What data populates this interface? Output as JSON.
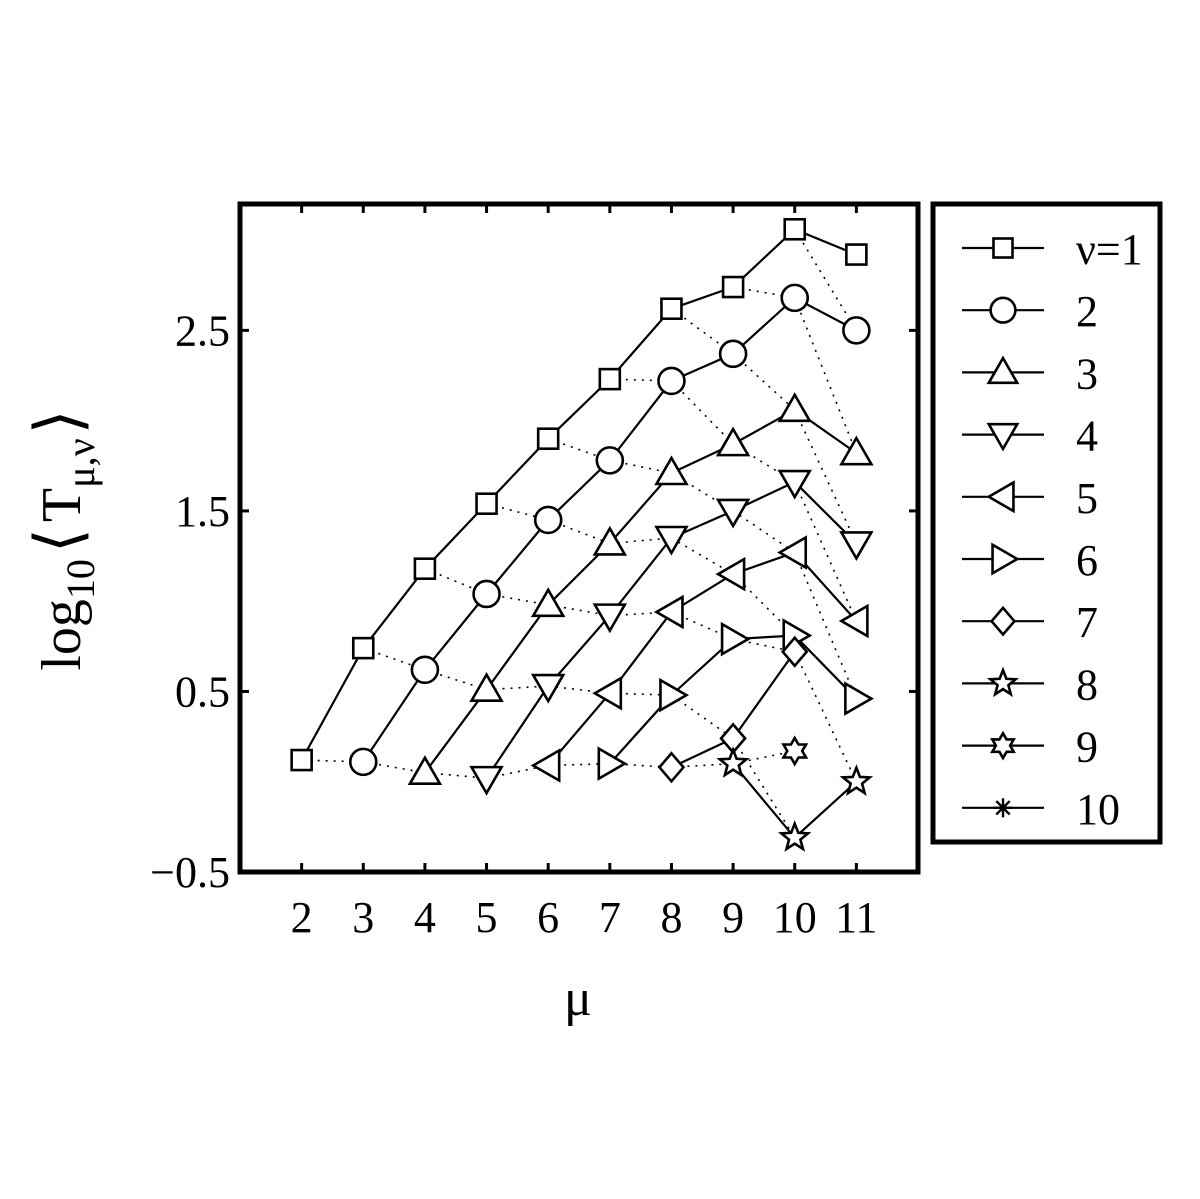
{
  "chart_data": {
    "type": "line",
    "title": "",
    "xlabel": "μ",
    "ylabel": {
      "base": "log",
      "sub": "10",
      "symbol": "T",
      "index": "μ,ν"
    },
    "xlim": [
      1,
      12
    ],
    "ylim": [
      -0.5,
      3.2
    ],
    "xticks": [
      "2",
      "3",
      "4",
      "5",
      "6",
      "7",
      "8",
      "9",
      "10",
      "11"
    ],
    "yticks": [
      "−0.5",
      "0.5",
      "1.5",
      "2.5"
    ],
    "ytick_values": [
      -0.5,
      0.5,
      1.5,
      2.5
    ],
    "grid": false,
    "legend_position": "outside-right",
    "series": [
      {
        "name": "ν=1",
        "marker": "square",
        "x": [
          2,
          3,
          4,
          5,
          6,
          7,
          8,
          9,
          10,
          11
        ],
        "y": [
          0.12,
          0.74,
          1.18,
          1.54,
          1.9,
          2.23,
          2.62,
          2.74,
          3.06,
          2.92
        ]
      },
      {
        "name": "2",
        "marker": "circle",
        "x": [
          3,
          4,
          5,
          6,
          7,
          8,
          9,
          10,
          11
        ],
        "y": [
          0.11,
          0.62,
          1.04,
          1.45,
          1.78,
          2.22,
          2.37,
          2.68,
          2.5
        ]
      },
      {
        "name": "3",
        "marker": "triangle-up",
        "x": [
          4,
          5,
          6,
          7,
          8,
          9,
          10,
          11
        ],
        "y": [
          0.05,
          0.51,
          0.98,
          1.32,
          1.71,
          1.87,
          2.06,
          1.82
        ]
      },
      {
        "name": "4",
        "marker": "triangle-down",
        "x": [
          5,
          6,
          7,
          8,
          9,
          10,
          11
        ],
        "y": [
          0.02,
          0.53,
          0.92,
          1.35,
          1.5,
          1.66,
          1.32
        ]
      },
      {
        "name": "5",
        "marker": "triangle-left",
        "x": [
          6,
          7,
          8,
          9,
          10,
          11
        ],
        "y": [
          0.09,
          0.49,
          0.94,
          1.15,
          1.27,
          0.89
        ]
      },
      {
        "name": "6",
        "marker": "triangle-right",
        "x": [
          7,
          8,
          9,
          10,
          11
        ],
        "y": [
          0.1,
          0.48,
          0.79,
          0.81,
          0.46
        ]
      },
      {
        "name": "7",
        "marker": "diamond",
        "x": [
          8,
          9,
          10
        ],
        "y": [
          0.08,
          0.24,
          0.72
        ]
      },
      {
        "name": "8",
        "marker": "pentagram",
        "x": [
          9,
          10,
          11
        ],
        "y": [
          0.1,
          -0.31,
          0.0
        ]
      },
      {
        "name": "9",
        "marker": "hexagram",
        "x": [
          10
        ],
        "y": [
          0.17
        ]
      },
      {
        "name": "10",
        "marker": "asterisk",
        "x": [],
        "y": []
      }
    ]
  }
}
